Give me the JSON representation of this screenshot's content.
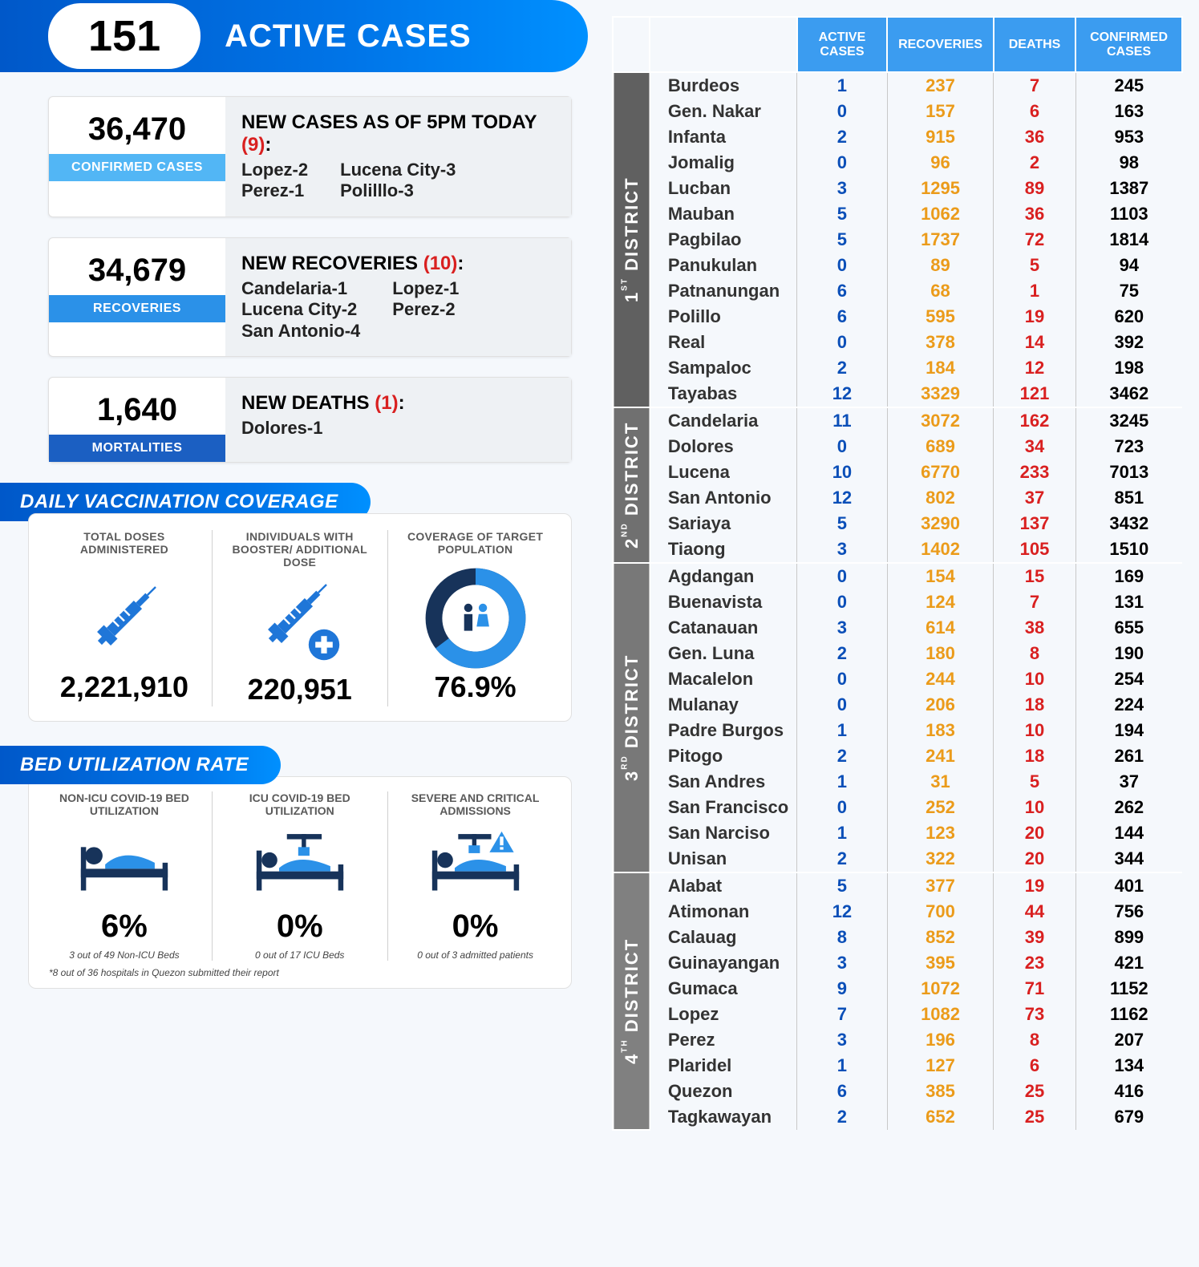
{
  "header": {
    "number": "151",
    "label": "ACTIVE CASES"
  },
  "confirmed": {
    "value": "36,470",
    "tag": "CONFIRMED CASES",
    "title": "NEW CASES AS OF 5PM TODAY",
    "count": "(9)",
    "col1": "Lopez-2\nPerez-1",
    "col2": "Lucena City-3\nPolilllo-3"
  },
  "recoveries": {
    "value": "34,679",
    "tag": "RECOVERIES",
    "title": "NEW RECOVERIES",
    "count": "(10)",
    "col1": "Candelaria-1\nLucena City-2\nSan Antonio-4",
    "col2": "Lopez-1\nPerez-2"
  },
  "mortalities": {
    "value": "1,640",
    "tag": "MORTALITIES",
    "title": "NEW DEATHS",
    "count": "(1)",
    "col1": "Dolores-1",
    "col2": ""
  },
  "vax_title": "DAILY VACCINATION COVERAGE",
  "vax": [
    {
      "label": "TOTAL DOSES ADMINISTERED",
      "value": "2,221,910"
    },
    {
      "label": "INDIVIDUALS WITH BOOSTER/ ADDITIONAL DOSE",
      "value": "220,951"
    },
    {
      "label": "COVERAGE OF TARGET POPULATION",
      "value": "76.9%"
    }
  ],
  "bed_title": "BED UTILIZATION RATE",
  "bed": [
    {
      "label": "NON-ICU COVID-19 BED UTILIZATION",
      "value": "6%",
      "sub": "3 out of 49 Non-ICU Beds"
    },
    {
      "label": "ICU COVID-19 BED UTILIZATION",
      "value": "0%",
      "sub": "0 out of 17 ICU Beds"
    },
    {
      "label": "SEVERE AND CRITICAL ADMISSIONS",
      "value": "0%",
      "sub": "0 out of 3 admitted patients"
    }
  ],
  "bed_note": "*8 out of 36 hospitals in Quezon submitted their report",
  "table_headers": [
    "ACTIVE CASES",
    "RECOVERIES",
    "DEATHS",
    "CONFIRMED CASES"
  ],
  "districts": [
    {
      "label": "1ST DISTRICT",
      "rows": [
        [
          "Burdeos",
          "1",
          "237",
          "7",
          "245"
        ],
        [
          "Gen. Nakar",
          "0",
          "157",
          "6",
          "163"
        ],
        [
          "Infanta",
          "2",
          "915",
          "36",
          "953"
        ],
        [
          "Jomalig",
          "0",
          "96",
          "2",
          "98"
        ],
        [
          "Lucban",
          "3",
          "1295",
          "89",
          "1387"
        ],
        [
          "Mauban",
          "5",
          "1062",
          "36",
          "1103"
        ],
        [
          "Pagbilao",
          "5",
          "1737",
          "72",
          "1814"
        ],
        [
          "Panukulan",
          "0",
          "89",
          "5",
          "94"
        ],
        [
          "Patnanungan",
          "6",
          "68",
          "1",
          "75"
        ],
        [
          "Polillo",
          "6",
          "595",
          "19",
          "620"
        ],
        [
          "Real",
          "0",
          "378",
          "14",
          "392"
        ],
        [
          "Sampaloc",
          "2",
          "184",
          "12",
          "198"
        ],
        [
          "Tayabas",
          "12",
          "3329",
          "121",
          "3462"
        ]
      ]
    },
    {
      "label": "2ND DISTRICT",
      "rows": [
        [
          "Candelaria",
          "11",
          "3072",
          "162",
          "3245"
        ],
        [
          "Dolores",
          "0",
          "689",
          "34",
          "723"
        ],
        [
          "Lucena",
          "10",
          "6770",
          "233",
          "7013"
        ],
        [
          "San Antonio",
          "12",
          "802",
          "37",
          "851"
        ],
        [
          "Sariaya",
          "5",
          "3290",
          "137",
          "3432"
        ],
        [
          "Tiaong",
          "3",
          "1402",
          "105",
          "1510"
        ]
      ]
    },
    {
      "label": "3RD DISTRICT",
      "rows": [
        [
          "Agdangan",
          "0",
          "154",
          "15",
          "169"
        ],
        [
          "Buenavista",
          "0",
          "124",
          "7",
          "131"
        ],
        [
          "Catanauan",
          "3",
          "614",
          "38",
          "655"
        ],
        [
          "Gen. Luna",
          "2",
          "180",
          "8",
          "190"
        ],
        [
          "Macalelon",
          "0",
          "244",
          "10",
          "254"
        ],
        [
          "Mulanay",
          "0",
          "206",
          "18",
          "224"
        ],
        [
          "Padre Burgos",
          "1",
          "183",
          "10",
          "194"
        ],
        [
          "Pitogo",
          "2",
          "241",
          "18",
          "261"
        ],
        [
          "San Andres",
          "1",
          "31",
          "5",
          "37"
        ],
        [
          "San Francisco",
          "0",
          "252",
          "10",
          "262"
        ],
        [
          "San Narciso",
          "1",
          "123",
          "20",
          "144"
        ],
        [
          "Unisan",
          "2",
          "322",
          "20",
          "344"
        ]
      ]
    },
    {
      "label": "4TH DISTRICT",
      "rows": [
        [
          "Alabat",
          "5",
          "377",
          "19",
          "401"
        ],
        [
          "Atimonan",
          "12",
          "700",
          "44",
          "756"
        ],
        [
          "Calauag",
          "8",
          "852",
          "39",
          "899"
        ],
        [
          "Guinayangan",
          "3",
          "395",
          "23",
          "421"
        ],
        [
          "Gumaca",
          "9",
          "1072",
          "71",
          "1152"
        ],
        [
          "Lopez",
          "7",
          "1082",
          "73",
          "1162"
        ],
        [
          "Perez",
          "3",
          "196",
          "8",
          "207"
        ],
        [
          "Plaridel",
          "1",
          "127",
          "6",
          "134"
        ],
        [
          "Quezon",
          "6",
          "385",
          "25",
          "416"
        ],
        [
          "Tagkawayan",
          "2",
          "652",
          "25",
          "679"
        ]
      ]
    }
  ],
  "colors": {
    "blue": "#0b4fb8",
    "orange": "#eb9b1a",
    "red": "#d92020"
  }
}
